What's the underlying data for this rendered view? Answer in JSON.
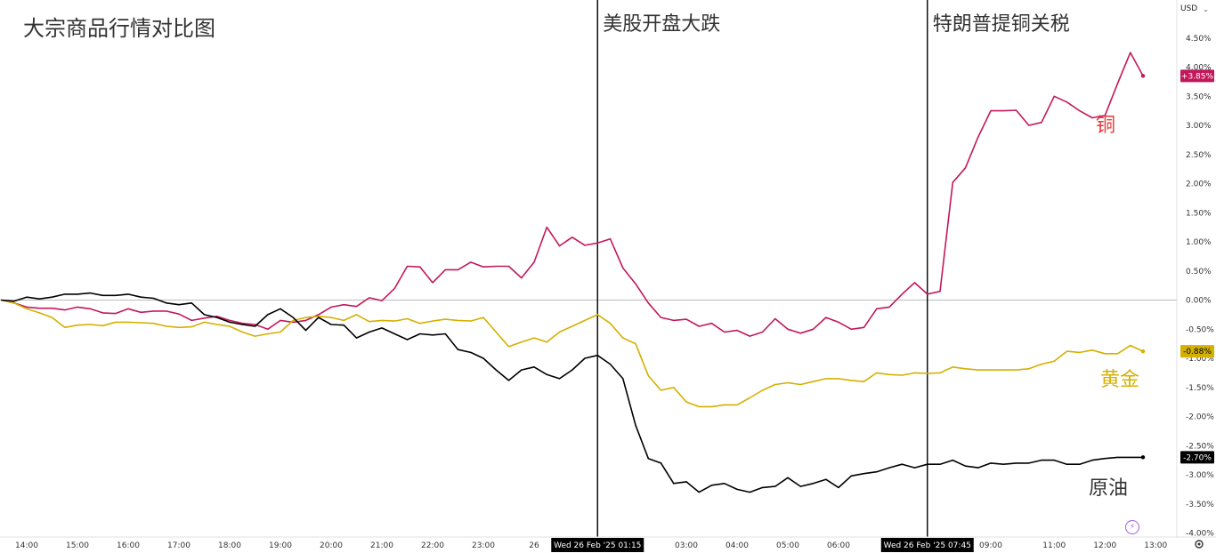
{
  "toolbar": {
    "currency": "USD",
    "chevron_icon": "chevron-down-icon",
    "settings_icon": "gear-icon",
    "flash_icon": "lightning-icon"
  },
  "chart_data": {
    "type": "line",
    "title": "大宗商品行情对比图",
    "xlabel": "",
    "ylabel": "",
    "ylim": [
      -4.0,
      4.7
    ],
    "grid": false,
    "x_ticks": [
      "14:00",
      "15:00",
      "16:00",
      "17:00",
      "18:00",
      "19:00",
      "20:00",
      "21:00",
      "22:00",
      "23:00",
      "26",
      "Wed 26 Feb '25  01:15",
      "03:00",
      "04:00",
      "05:00",
      "06:00",
      "Wed 26 Feb '25  07:45",
      "09:00",
      "11:00",
      "12:00",
      "13:00"
    ],
    "y_ticks": [
      "4.50%",
      "4.00%",
      "3.50%",
      "3.00%",
      "2.50%",
      "2.00%",
      "1.50%",
      "1.00%",
      "0.50%",
      "0.00%",
      "-0.50%",
      "-1.00%",
      "-1.50%",
      "-2.00%",
      "-2.50%",
      "-3.00%",
      "-3.50%",
      "-4.00%"
    ],
    "y_tick_values": [
      4.5,
      4.0,
      3.5,
      3.0,
      2.5,
      2.0,
      1.5,
      1.0,
      0.5,
      0.0,
      -0.5,
      -1.0,
      -1.5,
      -2.0,
      -2.5,
      -3.0,
      -3.5,
      -4.0
    ],
    "x_tick_hours": [
      14,
      15,
      16,
      17,
      18,
      19,
      20,
      21,
      22,
      23,
      24,
      25.25,
      27,
      28,
      29,
      30,
      31.75,
      33,
      34.25,
      35.25,
      36.25
    ],
    "annotations": [
      {
        "label": "美股开盘大跌",
        "x_hour": 25.25
      },
      {
        "label": "特朗普提铜关税",
        "x_hour": 31.75
      }
    ],
    "series": [
      {
        "name": "铜",
        "color": "#c2185b",
        "last_label": "+3.85%",
        "hours": [
          13.5,
          13.75,
          14.0,
          14.25,
          14.5,
          14.75,
          15.0,
          15.25,
          15.5,
          15.75,
          16.0,
          16.25,
          16.5,
          16.75,
          17.0,
          17.25,
          17.5,
          17.75,
          18.0,
          18.25,
          18.5,
          18.75,
          19.0,
          19.25,
          19.5,
          19.75,
          20.0,
          20.25,
          20.5,
          20.75,
          21.0,
          21.25,
          21.5,
          21.75,
          22.0,
          22.25,
          22.5,
          22.75,
          23.0,
          23.25,
          23.5,
          23.75,
          24.0,
          24.25,
          24.5,
          24.75,
          25.0,
          25.25,
          25.5,
          25.75,
          26.0,
          26.25,
          26.5,
          26.75,
          27.0,
          27.25,
          27.5,
          27.75,
          28.0,
          28.25,
          28.5,
          28.75,
          29.0,
          29.25,
          29.5,
          29.75,
          30.0,
          30.25,
          30.5,
          30.75,
          31.0,
          31.25,
          31.5,
          31.75,
          32.0,
          32.25,
          32.5,
          32.75,
          33.0,
          33.25,
          33.5,
          33.75,
          34.0,
          34.25,
          34.5,
          34.75,
          35.0,
          35.25,
          35.5,
          35.75,
          36.0
        ],
        "values": [
          0.0,
          -0.05,
          -0.12,
          -0.14,
          -0.14,
          -0.17,
          -0.12,
          -0.15,
          -0.22,
          -0.23,
          -0.15,
          -0.21,
          -0.19,
          -0.19,
          -0.24,
          -0.35,
          -0.31,
          -0.28,
          -0.35,
          -0.4,
          -0.42,
          -0.5,
          -0.35,
          -0.38,
          -0.35,
          -0.25,
          -0.12,
          -0.08,
          -0.11,
          0.04,
          -0.01,
          0.2,
          0.58,
          0.57,
          0.3,
          0.52,
          0.52,
          0.65,
          0.57,
          0.58,
          0.58,
          0.38,
          0.65,
          1.25,
          0.93,
          1.08,
          0.94,
          0.98,
          1.05,
          0.55,
          0.28,
          -0.05,
          -0.3,
          -0.35,
          -0.33,
          -0.45,
          -0.4,
          -0.55,
          -0.52,
          -0.62,
          -0.55,
          -0.32,
          -0.5,
          -0.57,
          -0.5,
          -0.3,
          -0.38,
          -0.5,
          -0.47,
          -0.15,
          -0.12,
          0.1,
          0.3,
          0.1,
          0.15,
          2.02,
          2.27,
          2.8,
          3.25,
          3.25,
          3.26,
          3.0,
          3.05,
          3.5,
          3.4,
          3.25,
          3.13,
          3.17,
          3.72,
          4.25,
          3.85
        ]
      },
      {
        "name": "黄金",
        "color": "#d4b000",
        "last_label": "-0.88%",
        "hours": [
          13.5,
          13.75,
          14.0,
          14.25,
          14.5,
          14.75,
          15.0,
          15.25,
          15.5,
          15.75,
          16.0,
          16.25,
          16.5,
          16.75,
          17.0,
          17.25,
          17.5,
          17.75,
          18.0,
          18.25,
          18.5,
          18.75,
          19.0,
          19.25,
          19.5,
          19.75,
          20.0,
          20.25,
          20.5,
          20.75,
          21.0,
          21.25,
          21.5,
          21.75,
          22.0,
          22.25,
          22.5,
          22.75,
          23.0,
          23.25,
          23.5,
          23.75,
          24.0,
          24.25,
          24.5,
          24.75,
          25.0,
          25.25,
          25.5,
          25.75,
          26.0,
          26.25,
          26.5,
          26.75,
          27.0,
          27.25,
          27.5,
          27.75,
          28.0,
          28.25,
          28.5,
          28.75,
          29.0,
          29.25,
          29.5,
          29.75,
          30.0,
          30.25,
          30.5,
          30.75,
          31.0,
          31.25,
          31.5,
          31.75,
          32.0,
          32.25,
          32.5,
          32.75,
          33.0,
          33.25,
          33.5,
          33.75,
          34.0,
          34.25,
          34.5,
          34.75,
          35.0,
          35.25,
          35.5,
          35.75,
          36.0
        ],
        "values": [
          0.0,
          -0.05,
          -0.15,
          -0.22,
          -0.3,
          -0.47,
          -0.43,
          -0.42,
          -0.44,
          -0.38,
          -0.38,
          -0.39,
          -0.4,
          -0.45,
          -0.47,
          -0.46,
          -0.38,
          -0.42,
          -0.45,
          -0.55,
          -0.62,
          -0.58,
          -0.55,
          -0.35,
          -0.3,
          -0.28,
          -0.3,
          -0.35,
          -0.25,
          -0.37,
          -0.35,
          -0.36,
          -0.32,
          -0.4,
          -0.36,
          -0.33,
          -0.35,
          -0.36,
          -0.3,
          -0.55,
          -0.8,
          -0.72,
          -0.65,
          -0.72,
          -0.55,
          -0.45,
          -0.35,
          -0.25,
          -0.4,
          -0.65,
          -0.75,
          -1.3,
          -1.55,
          -1.5,
          -1.75,
          -1.83,
          -1.83,
          -1.8,
          -1.8,
          -1.68,
          -1.55,
          -1.45,
          -1.42,
          -1.45,
          -1.4,
          -1.35,
          -1.35,
          -1.38,
          -1.4,
          -1.25,
          -1.28,
          -1.29,
          -1.25,
          -1.26,
          -1.25,
          -1.15,
          -1.18,
          -1.2,
          -1.2,
          -1.2,
          -1.2,
          -1.18,
          -1.1,
          -1.05,
          -0.88,
          -0.9,
          -0.86,
          -0.92,
          -0.92,
          -0.78,
          -0.88
        ]
      },
      {
        "name": "原油",
        "color": "#000000",
        "last_label": "-2.70%",
        "hours": [
          13.5,
          13.75,
          14.0,
          14.25,
          14.5,
          14.75,
          15.0,
          15.25,
          15.5,
          15.75,
          16.0,
          16.25,
          16.5,
          16.75,
          17.0,
          17.25,
          17.5,
          17.75,
          18.0,
          18.25,
          18.5,
          18.75,
          19.0,
          19.25,
          19.5,
          19.75,
          20.0,
          20.25,
          20.5,
          20.75,
          21.0,
          21.25,
          21.5,
          21.75,
          22.0,
          22.25,
          22.5,
          22.75,
          23.0,
          23.25,
          23.5,
          23.75,
          24.0,
          24.25,
          24.5,
          24.75,
          25.0,
          25.25,
          25.5,
          25.75,
          26.0,
          26.25,
          26.5,
          26.75,
          27.0,
          27.25,
          27.5,
          27.75,
          28.0,
          28.25,
          28.5,
          28.75,
          29.0,
          29.25,
          29.5,
          29.75,
          30.0,
          30.25,
          30.5,
          30.75,
          31.0,
          31.25,
          31.5,
          31.75,
          32.0,
          32.25,
          32.5,
          32.75,
          33.0,
          33.25,
          33.5,
          33.75,
          34.0,
          34.25,
          34.5,
          34.75,
          35.0,
          35.25,
          35.5,
          35.75,
          36.0
        ],
        "values": [
          0.0,
          -0.02,
          0.05,
          0.02,
          0.05,
          0.1,
          0.1,
          0.12,
          0.08,
          0.08,
          0.1,
          0.05,
          0.03,
          -0.05,
          -0.08,
          -0.05,
          -0.25,
          -0.3,
          -0.38,
          -0.42,
          -0.45,
          -0.25,
          -0.15,
          -0.3,
          -0.52,
          -0.3,
          -0.42,
          -0.43,
          -0.65,
          -0.55,
          -0.48,
          -0.58,
          -0.68,
          -0.58,
          -0.6,
          -0.58,
          -0.85,
          -0.9,
          -1.0,
          -1.2,
          -1.38,
          -1.2,
          -1.15,
          -1.28,
          -1.35,
          -1.2,
          -1.0,
          -0.95,
          -1.1,
          -1.35,
          -2.15,
          -2.72,
          -2.8,
          -3.15,
          -3.12,
          -3.3,
          -3.18,
          -3.15,
          -3.25,
          -3.3,
          -3.22,
          -3.2,
          -3.05,
          -3.2,
          -3.15,
          -3.08,
          -3.22,
          -3.02,
          -2.98,
          -2.95,
          -2.88,
          -2.82,
          -2.88,
          -2.82,
          -2.82,
          -2.75,
          -2.85,
          -2.88,
          -2.8,
          -2.82,
          -2.8,
          -2.8,
          -2.75,
          -2.75,
          -2.82,
          -2.82,
          -2.75,
          -2.72,
          -2.7,
          -2.7,
          -2.7
        ]
      }
    ]
  }
}
